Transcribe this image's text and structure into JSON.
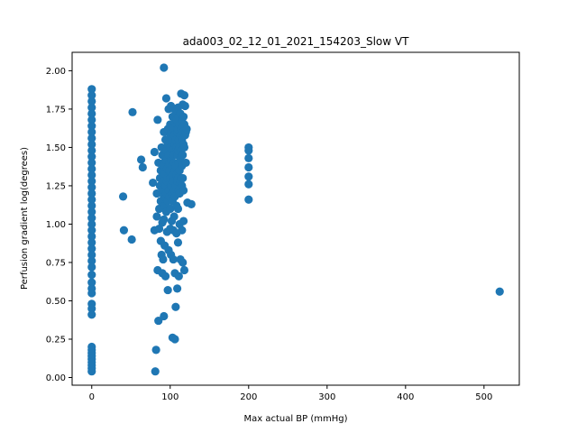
{
  "chart_data": {
    "type": "scatter",
    "title": "ada003_02_12_01_2021_154203_Slow VT",
    "xlabel": "Max actual BP (mmHg)",
    "ylabel": "Perfusion gradient log(degrees)",
    "xlim": [
      -25,
      545
    ],
    "ylim": [
      -0.05,
      2.12
    ],
    "xticks": [
      0,
      100,
      200,
      300,
      400,
      500
    ],
    "yticks": [
      0.0,
      0.25,
      0.5,
      0.75,
      1.0,
      1.25,
      1.5,
      1.75,
      2.0
    ],
    "xtick_labels": [
      "0",
      "100",
      "200",
      "300",
      "400",
      "500"
    ],
    "ytick_labels": [
      "0.00",
      "0.25",
      "0.50",
      "0.75",
      "1.00",
      "1.25",
      "1.50",
      "1.75",
      "2.00"
    ],
    "grid": false,
    "marker_color": "#1f77b4",
    "series": [
      {
        "points": [
          [
            0,
            1.88
          ],
          [
            0,
            1.84
          ],
          [
            0,
            1.8
          ],
          [
            0,
            1.76
          ],
          [
            0,
            1.72
          ],
          [
            0,
            1.68
          ],
          [
            0,
            1.64
          ],
          [
            0,
            1.6
          ],
          [
            0,
            1.56
          ],
          [
            0,
            1.52
          ],
          [
            0,
            1.48
          ],
          [
            0,
            1.44
          ],
          [
            0,
            1.4
          ],
          [
            0,
            1.36
          ],
          [
            0,
            1.32
          ],
          [
            0,
            1.28
          ],
          [
            0,
            1.24
          ],
          [
            0,
            1.2
          ],
          [
            0,
            1.16
          ],
          [
            0,
            1.12
          ],
          [
            0,
            1.08
          ],
          [
            0,
            1.04
          ],
          [
            0,
            1.0
          ],
          [
            0,
            0.96
          ],
          [
            0,
            0.92
          ],
          [
            0,
            0.88
          ],
          [
            0,
            0.84
          ],
          [
            0,
            0.8
          ],
          [
            0,
            0.76
          ],
          [
            0,
            0.72
          ],
          [
            0,
            0.67
          ],
          [
            0,
            0.62
          ],
          [
            0,
            0.58
          ],
          [
            0,
            0.55
          ],
          [
            0,
            0.48
          ],
          [
            0,
            0.45
          ],
          [
            0,
            0.41
          ],
          [
            0,
            0.2
          ],
          [
            0,
            0.18
          ],
          [
            0,
            0.16
          ],
          [
            0,
            0.14
          ],
          [
            0,
            0.12
          ],
          [
            0,
            0.1
          ],
          [
            0,
            0.08
          ],
          [
            0,
            0.06
          ],
          [
            0,
            0.04
          ],
          [
            40,
            1.18
          ],
          [
            41,
            0.96
          ],
          [
            51,
            0.9
          ],
          [
            52,
            1.73
          ],
          [
            63,
            1.42
          ],
          [
            65,
            1.37
          ],
          [
            78,
            1.27
          ],
          [
            80,
            1.47
          ],
          [
            80,
            0.96
          ],
          [
            81,
            0.04
          ],
          [
            82,
            0.18
          ],
          [
            83,
            1.2
          ],
          [
            83,
            1.05
          ],
          [
            84,
            1.68
          ],
          [
            84,
            0.7
          ],
          [
            85,
            1.4
          ],
          [
            85,
            0.37
          ],
          [
            86,
            1.1
          ],
          [
            86,
            0.97
          ],
          [
            87,
            1.3
          ],
          [
            87,
            1.25
          ],
          [
            88,
            1.35
          ],
          [
            88,
            1.15
          ],
          [
            88,
            0.89
          ],
          [
            89,
            1.5
          ],
          [
            89,
            0.8
          ],
          [
            90,
            1.45
          ],
          [
            90,
            1.22
          ],
          [
            90,
            1.01
          ],
          [
            90,
            0.68
          ],
          [
            91,
            1.38
          ],
          [
            91,
            1.28
          ],
          [
            91,
            0.77
          ],
          [
            92,
            2.02
          ],
          [
            92,
            1.6
          ],
          [
            92,
            1.18
          ],
          [
            92,
            1.03
          ],
          [
            92,
            0.4
          ],
          [
            93,
            1.33
          ],
          [
            93,
            1.12
          ],
          [
            93,
            0.86
          ],
          [
            94,
            1.55
          ],
          [
            94,
            1.42
          ],
          [
            94,
            1.25
          ],
          [
            94,
            0.66
          ],
          [
            95,
            1.82
          ],
          [
            95,
            1.48
          ],
          [
            95,
            1.2
          ],
          [
            95,
            1.08
          ],
          [
            96,
            1.36
          ],
          [
            96,
            1.28
          ],
          [
            96,
            0.95
          ],
          [
            97,
            1.62
          ],
          [
            97,
            1.52
          ],
          [
            97,
            1.3
          ],
          [
            97,
            1.15
          ],
          [
            97,
            0.57
          ],
          [
            98,
            1.75
          ],
          [
            98,
            1.45
          ],
          [
            98,
            1.22
          ],
          [
            98,
            0.83
          ],
          [
            99,
            1.4
          ],
          [
            99,
            1.35
          ],
          [
            99,
            1.18
          ],
          [
            100,
            1.65
          ],
          [
            100,
            1.58
          ],
          [
            100,
            1.5
          ],
          [
            100,
            1.3
          ],
          [
            100,
            1.1
          ],
          [
            100,
            0.97
          ],
          [
            101,
            1.77
          ],
          [
            101,
            1.6
          ],
          [
            101,
            1.42
          ],
          [
            101,
            1.25
          ],
          [
            101,
            0.8
          ],
          [
            102,
            1.55
          ],
          [
            102,
            1.38
          ],
          [
            102,
            1.2
          ],
          [
            102,
            1.02
          ],
          [
            103,
            1.7
          ],
          [
            103,
            1.48
          ],
          [
            103,
            1.32
          ],
          [
            103,
            1.15
          ],
          [
            103,
            0.26
          ],
          [
            104,
            1.63
          ],
          [
            104,
            1.45
          ],
          [
            104,
            1.28
          ],
          [
            104,
            0.96
          ],
          [
            104,
            0.77
          ],
          [
            105,
            1.75
          ],
          [
            105,
            1.58
          ],
          [
            105,
            1.4
          ],
          [
            105,
            1.22
          ],
          [
            105,
            1.05
          ],
          [
            106,
            1.66
          ],
          [
            106,
            1.52
          ],
          [
            106,
            1.35
          ],
          [
            106,
            1.18
          ],
          [
            106,
            0.68
          ],
          [
            106,
            0.25
          ],
          [
            107,
            1.72
          ],
          [
            107,
            1.55
          ],
          [
            107,
            1.38
          ],
          [
            107,
            1.25
          ],
          [
            107,
            0.46
          ],
          [
            108,
            1.68
          ],
          [
            108,
            1.5
          ],
          [
            108,
            1.32
          ],
          [
            108,
            1.12
          ],
          [
            108,
            0.94
          ],
          [
            109,
            1.6
          ],
          [
            109,
            1.45
          ],
          [
            109,
            1.28
          ],
          [
            109,
            0.58
          ],
          [
            110,
            1.76
          ],
          [
            110,
            1.62
          ],
          [
            110,
            1.48
          ],
          [
            110,
            1.3
          ],
          [
            110,
            1.1
          ],
          [
            110,
            0.88
          ],
          [
            111,
            1.7
          ],
          [
            111,
            1.55
          ],
          [
            111,
            1.4
          ],
          [
            111,
            1.22
          ],
          [
            111,
            0.66
          ],
          [
            112,
            1.65
          ],
          [
            112,
            1.5
          ],
          [
            112,
            1.35
          ],
          [
            112,
            1.2
          ],
          [
            112,
            1.0
          ],
          [
            113,
            1.72
          ],
          [
            113,
            1.58
          ],
          [
            113,
            1.42
          ],
          [
            113,
            1.28
          ],
          [
            113,
            0.77
          ],
          [
            114,
            1.85
          ],
          [
            114,
            1.62
          ],
          [
            114,
            1.48
          ],
          [
            114,
            1.3
          ],
          [
            115,
            1.68
          ],
          [
            115,
            1.55
          ],
          [
            115,
            1.38
          ],
          [
            115,
            1.25
          ],
          [
            115,
            0.96
          ],
          [
            116,
            1.78
          ],
          [
            116,
            1.6
          ],
          [
            116,
            1.45
          ],
          [
            116,
            1.3
          ],
          [
            116,
            0.75
          ],
          [
            117,
            1.7
          ],
          [
            117,
            1.52
          ],
          [
            117,
            1.22
          ],
          [
            117,
            1.02
          ],
          [
            118,
            1.84
          ],
          [
            118,
            1.65
          ],
          [
            118,
            1.5
          ],
          [
            118,
            0.7
          ],
          [
            119,
            1.77
          ],
          [
            119,
            1.58
          ],
          [
            120,
            1.6
          ],
          [
            120,
            1.4
          ],
          [
            121,
            1.62
          ],
          [
            122,
            1.14
          ],
          [
            127,
            1.13
          ],
          [
            200,
            1.5
          ],
          [
            200,
            1.48
          ],
          [
            200,
            1.43
          ],
          [
            200,
            1.37
          ],
          [
            200,
            1.31
          ],
          [
            200,
            1.26
          ],
          [
            200,
            1.16
          ],
          [
            520,
            0.56
          ]
        ]
      }
    ]
  }
}
